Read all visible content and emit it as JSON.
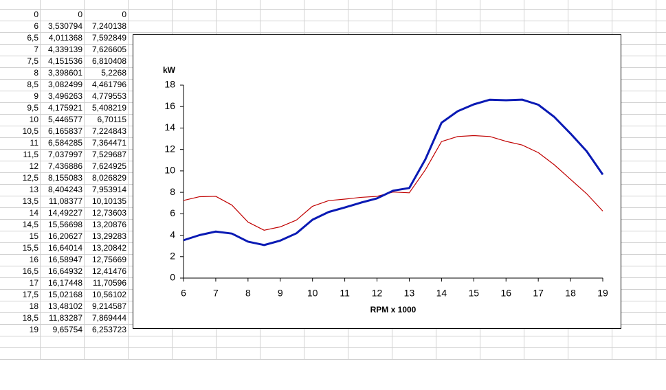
{
  "table": {
    "rows": [
      [
        "0",
        "0",
        "0"
      ],
      [
        "6",
        "3,530794",
        "7,240138"
      ],
      [
        "6,5",
        "4,011368",
        "7,592849"
      ],
      [
        "7",
        "4,339139",
        "7,626605"
      ],
      [
        "7,5",
        "4,151536",
        "6,810408"
      ],
      [
        "8",
        "3,398601",
        "5,2268"
      ],
      [
        "8,5",
        "3,082499",
        "4,461796"
      ],
      [
        "9",
        "3,496263",
        "4,779553"
      ],
      [
        "9,5",
        "4,175921",
        "5,408219"
      ],
      [
        "10",
        "5,446577",
        "6,70115"
      ],
      [
        "10,5",
        "6,165837",
        "7,224843"
      ],
      [
        "11",
        "6,584285",
        "7,364471"
      ],
      [
        "11,5",
        "7,037997",
        "7,529687"
      ],
      [
        "12",
        "7,436886",
        "7,624925"
      ],
      [
        "12,5",
        "8,155083",
        "8,026829"
      ],
      [
        "13",
        "8,404243",
        "7,953914"
      ],
      [
        "13,5",
        "11,08377",
        "10,10135"
      ],
      [
        "14",
        "14,49227",
        "12,73603"
      ],
      [
        "14,5",
        "15,56698",
        "13,20876"
      ],
      [
        "15",
        "16,20627",
        "13,29283"
      ],
      [
        "15,5",
        "16,64014",
        "13,20842"
      ],
      [
        "16",
        "16,58947",
        "12,75669"
      ],
      [
        "16,5",
        "16,64932",
        "12,41476"
      ],
      [
        "17",
        "16,17448",
        "11,70596"
      ],
      [
        "17,5",
        "15,02168",
        "10,56102"
      ],
      [
        "18",
        "13,48102",
        "9,214587"
      ],
      [
        "18,5",
        "11,83287",
        "7,869444"
      ],
      [
        "19",
        "9,65754",
        "6,253723"
      ]
    ]
  },
  "chart_data": {
    "type": "line",
    "y_label": "kW",
    "x_label": "RPM x 1000",
    "x": [
      6,
      6.5,
      7,
      7.5,
      8,
      8.5,
      9,
      9.5,
      10,
      10.5,
      11,
      11.5,
      12,
      12.5,
      13,
      13.5,
      14,
      14.5,
      15,
      15.5,
      16,
      16.5,
      17,
      17.5,
      18,
      18.5,
      19
    ],
    "series": [
      {
        "color": "#0a1ab4",
        "values": [
          3.530794,
          4.011368,
          4.339139,
          4.151536,
          3.398601,
          3.082499,
          3.496263,
          4.175921,
          5.446577,
          6.165837,
          6.584285,
          7.037997,
          7.436886,
          8.155083,
          8.404243,
          11.08377,
          14.49227,
          15.56698,
          16.20627,
          16.64014,
          16.58947,
          16.64932,
          16.17448,
          15.02168,
          13.48102,
          11.83287,
          9.65754
        ]
      },
      {
        "color": "#c00000",
        "values": [
          7.240138,
          7.592849,
          7.626605,
          6.810408,
          5.2268,
          4.461796,
          4.779553,
          5.408219,
          6.70115,
          7.224843,
          7.364471,
          7.529687,
          7.624925,
          8.026829,
          7.953914,
          10.10135,
          12.73603,
          13.20876,
          13.29283,
          13.20842,
          12.75669,
          12.41476,
          11.70596,
          10.56102,
          9.214587,
          7.869444,
          6.253723
        ]
      }
    ],
    "xlim": [
      6,
      19
    ],
    "xticks": [
      6,
      7,
      8,
      9,
      10,
      11,
      12,
      13,
      14,
      15,
      16,
      17,
      18,
      19
    ],
    "ylim": [
      0,
      18
    ],
    "yticks": [
      0,
      2,
      4,
      6,
      8,
      10,
      12,
      14,
      16,
      18
    ]
  }
}
